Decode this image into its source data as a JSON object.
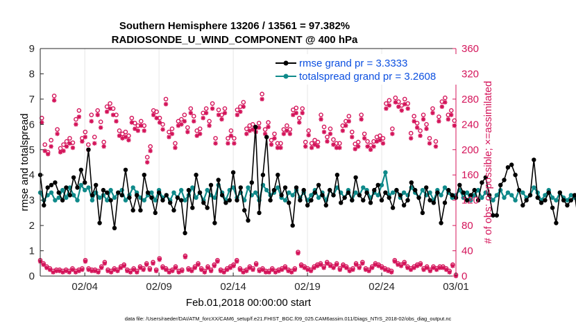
{
  "chart_data": {
    "type": "line",
    "title": "Southern Hemisphere 13206 / 13561 = 97.382%",
    "subtitle": "RADIOSONDE_U_WIND_COMPONENT @ 400 hPa",
    "xlabel": "Feb.01,2018 00:00:00 start",
    "ylabel": "rmse and totalspread",
    "ylabel_right": "# of obs: o=possible; ×=assimilated",
    "footnote": "data file: /Users/raeder/DAI/ATM_forcXX/CAM6_setup/f.e21.FHIST_BGC.f09_025.CAM6assim.011/Diags_NTrS_2018-02/obs_diag_output.nc",
    "xlim": [
      1,
      29
    ],
    "ylim": [
      0,
      9
    ],
    "ylim_right": [
      0,
      360
    ],
    "x_ticks": [
      {
        "value": 4,
        "label": "02/04"
      },
      {
        "value": 9,
        "label": "02/09"
      },
      {
        "value": 14,
        "label": "02/14"
      },
      {
        "value": 19,
        "label": "02/19"
      },
      {
        "value": 24,
        "label": "02/24"
      },
      {
        "value": 29,
        "label": "03/01"
      }
    ],
    "y_ticks": [
      "0",
      "1",
      "2",
      "3",
      "4",
      "5",
      "6",
      "7",
      "8",
      "9"
    ],
    "y_ticks_right": [
      "0",
      "40",
      "80",
      "120",
      "160",
      "200",
      "240",
      "280",
      "320",
      "360"
    ],
    "colors": {
      "rmse": "#000000",
      "spread": "#0f8a8a",
      "obs": "#d4145a",
      "legend_text": "#0b4fe0",
      "axis_right": "#d4145a"
    },
    "x_step_days": 0.25,
    "series": [
      {
        "name": "rmse",
        "legend": "rmse grand pr = 3.3333",
        "values": [
          4.0,
          2.8,
          3.5,
          3.6,
          3.7,
          3.3,
          3.0,
          3.5,
          3.2,
          3.9,
          3.5,
          4.2,
          3.7,
          5.0,
          3.2,
          3.6,
          2.1,
          3.4,
          3.3,
          3.0,
          1.9,
          3.3,
          3.2,
          4.2,
          3.1,
          2.6,
          3.2,
          2.6,
          4.0,
          3.3,
          3.1,
          2.5,
          3.3,
          3.0,
          3.2,
          2.9,
          2.6,
          3.1,
          3.0,
          1.7,
          3.4,
          2.7,
          4.0,
          3.3,
          2.9,
          2.7,
          3.6,
          2.1,
          3.8,
          3.2,
          2.9,
          3.0,
          4.1,
          3.0,
          3.5,
          2.6,
          2.2,
          3.7,
          5.9,
          2.5,
          4.0,
          5.5,
          3.0,
          3.4,
          4.0,
          3.2,
          3.5,
          2.9,
          2.0,
          3.5,
          3.0,
          3.4,
          2.8,
          3.0,
          3.3,
          3.6,
          3.2,
          2.8,
          3.4,
          3.2,
          4.0,
          2.9,
          3.1,
          3.3,
          3.0,
          3.9,
          3.2,
          3.0,
          3.3,
          2.9,
          3.4,
          3.6,
          3.0,
          3.3,
          3.1,
          2.7,
          3.4,
          3.2,
          2.8,
          3.0,
          3.7,
          3.4,
          3.1,
          2.5,
          3.5,
          3.0,
          2.9,
          3.3,
          2.1,
          2.9,
          3.4,
          3.2,
          3.1,
          3.6,
          3.3,
          3.0,
          3.2,
          3.4,
          3.0,
          3.7,
          3.9,
          3.2,
          2.4,
          2.4,
          3.6,
          3.8,
          4.3,
          4.4,
          4.0,
          3.4,
          2.8,
          3.0,
          3.2,
          4.6,
          3.1,
          2.9,
          3.0,
          3.3,
          2.7,
          2.1,
          3.3,
          3.0,
          2.8,
          3.0,
          3.2,
          2.2,
          3.1
        ]
      },
      {
        "name": "totalspread",
        "legend": "totalspread grand pr = 3.2608",
        "values": [
          3.3,
          3.0,
          3.2,
          3.3,
          3.0,
          3.1,
          3.4,
          3.1,
          3.5,
          3.2,
          3.0,
          3.6,
          3.4,
          3.5,
          3.0,
          3.3,
          3.1,
          3.2,
          3.0,
          3.4,
          3.1,
          3.3,
          3.4,
          3.0,
          3.2,
          3.5,
          3.3,
          3.1,
          3.0,
          3.2,
          3.3,
          3.0,
          3.4,
          3.1,
          3.2,
          3.0,
          3.3,
          3.1,
          3.4,
          3.0,
          3.2,
          3.5,
          3.1,
          3.3,
          3.0,
          3.4,
          3.2,
          3.1,
          3.6,
          3.3,
          3.0,
          3.4,
          3.5,
          3.1,
          3.3,
          3.0,
          3.5,
          3.2,
          3.3,
          3.0,
          3.6,
          3.4,
          3.2,
          3.3,
          3.5,
          3.1,
          3.0,
          3.3,
          3.2,
          3.4,
          3.1,
          3.3,
          3.0,
          3.2,
          3.4,
          3.1,
          3.3,
          3.0,
          3.4,
          3.2,
          3.5,
          3.3,
          3.1,
          3.4,
          3.0,
          3.3,
          3.2,
          3.5,
          3.4,
          3.1,
          3.3,
          3.2,
          3.6,
          4.1,
          3.2,
          3.3,
          3.4,
          3.1,
          3.3,
          3.2,
          3.5,
          3.3,
          3.1,
          3.4,
          3.2,
          3.3,
          3.0,
          3.4,
          3.2,
          3.5,
          3.3,
          3.1,
          3.2,
          3.4,
          3.1,
          3.3,
          3.0,
          3.2,
          3.4,
          3.1,
          3.3,
          3.2,
          3.0,
          3.2,
          3.4,
          3.1,
          3.3,
          3.2,
          3.0,
          3.4,
          3.3,
          3.1,
          3.2,
          3.5,
          3.3,
          3.0,
          3.2,
          3.4,
          3.1,
          3.0,
          3.3,
          3.1,
          3.0,
          3.2,
          3.1,
          3.0,
          3.1
        ]
      }
    ],
    "obs_possible_top": [
      250,
      208,
      196,
      215,
      285,
      232,
      202,
      208,
      213,
      218,
      211,
      248,
      262,
      218,
      228,
      208,
      255,
      220,
      262,
      244,
      212,
      268,
      273,
      265,
      255,
      230,
      225,
      228,
      222,
      250,
      242,
      238,
      245,
      238,
      188,
      205,
      262,
      260,
      250,
      240,
      280,
      228,
      233,
      210,
      245,
      248,
      255,
      235,
      265,
      253,
      230,
      233,
      258,
      265,
      245,
      273,
      218,
      263,
      255,
      265,
      218,
      230,
      218,
      263,
      268,
      275,
      233,
      238,
      240,
      235,
      242,
      288,
      232,
      243,
      215,
      225,
      210,
      210,
      232,
      238,
      232,
      263,
      266,
      250,
      265,
      212,
      230,
      210,
      215,
      212,
      255,
      236,
      220,
      233,
      216,
      210,
      210,
      238,
      245,
      253,
      228,
      209,
      212,
      255,
      225,
      213,
      207,
      213,
      220,
      222,
      218,
      273,
      278,
      233,
      282,
      276,
      270,
      280,
      273,
      226,
      253,
      242,
      230,
      255,
      240,
      218,
      265,
      213,
      252,
      276,
      282,
      255,
      262,
      246
    ],
    "obs_assimilated_top": [
      243,
      198,
      193,
      205,
      278,
      225,
      196,
      198,
      205,
      210,
      203,
      240,
      252,
      213,
      220,
      200,
      245,
      210,
      255,
      235,
      205,
      260,
      265,
      255,
      245,
      222,
      218,
      220,
      215,
      243,
      233,
      230,
      238,
      230,
      180,
      198,
      255,
      250,
      243,
      232,
      272,
      220,
      225,
      203,
      238,
      240,
      245,
      228,
      258,
      245,
      222,
      225,
      250,
      258,
      238,
      265,
      210,
      255,
      248,
      258,
      210,
      222,
      210,
      255,
      260,
      268,
      225,
      230,
      232,
      228,
      235,
      280,
      225,
      236,
      208,
      218,
      203,
      203,
      225,
      230,
      225,
      255,
      258,
      243,
      258,
      205,
      223,
      203,
      208,
      205,
      248,
      228,
      213,
      225,
      208,
      203,
      203,
      230,
      238,
      245,
      220,
      201,
      205,
      248,
      218,
      205,
      200,
      205,
      213,
      215,
      210,
      265,
      270,
      225,
      275,
      268,
      262,
      272,
      265,
      218,
      245,
      235,
      222,
      248,
      233,
      210,
      258,
      205,
      245,
      268,
      275,
      248,
      255,
      238
    ],
    "obs_possible_low": [
      25,
      20,
      15,
      12,
      8,
      10,
      10,
      8,
      10,
      8,
      12,
      8,
      10,
      12,
      25,
      12,
      10,
      10,
      8,
      15,
      22,
      10,
      8,
      12,
      10,
      15,
      18,
      10,
      8,
      12,
      8,
      15,
      12,
      20,
      12,
      22,
      10,
      28,
      15,
      12,
      8,
      10,
      15,
      8,
      10,
      32,
      12,
      10,
      15,
      20,
      12,
      8,
      15,
      10,
      18,
      25,
      10,
      8,
      12,
      15,
      18,
      25,
      12,
      8,
      10,
      15,
      12,
      20,
      10,
      12,
      8,
      8,
      12,
      8,
      10,
      12,
      15,
      10,
      8,
      12,
      38,
      18,
      15,
      12,
      10,
      15,
      18,
      20,
      15,
      22,
      18,
      15,
      20,
      12,
      18,
      15,
      10,
      12,
      20,
      15,
      22,
      12,
      10,
      15,
      20,
      18,
      15,
      12,
      10,
      8,
      25,
      20,
      18,
      22,
      15,
      12,
      15,
      18,
      20,
      12,
      15,
      10,
      15,
      12,
      15,
      15,
      12,
      8,
      18,
      2
    ]
  }
}
